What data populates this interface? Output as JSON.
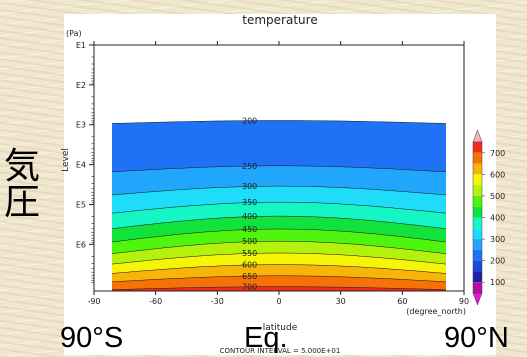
{
  "chart_data": {
    "type": "heatmap",
    "title": "temperature",
    "xlabel": "latitude",
    "ylabel": "Level",
    "x_unit": "(degree_north)",
    "y_unit": "(Pa)",
    "x_ticks": [
      -90,
      -60,
      -30,
      0,
      30,
      60,
      90
    ],
    "y_ticks": [
      "E1",
      "E2",
      "E3",
      "E4",
      "E5",
      "E6"
    ],
    "xlim": [
      -90,
      90
    ],
    "ylim": [
      10,
      2000000
    ],
    "y_scale": "log",
    "y_inverted": true,
    "contour_interval_note": "CONTOUR INTERVAL = 5.000E+01",
    "contour_interval": 50,
    "contour_levels": [
      200,
      250,
      300,
      350,
      400,
      450,
      500,
      550,
      600,
      650,
      700
    ],
    "contour_labels": [
      "200",
      "250",
      "300",
      "350",
      "400",
      "450",
      "500",
      "550",
      "600",
      "650",
      "700"
    ],
    "bands": [
      {
        "level": 150,
        "color": "#1a20a8"
      },
      {
        "level": 200,
        "color": "#1e46d8"
      },
      {
        "level": 250,
        "color": "#1f72f6"
      },
      {
        "level": 300,
        "color": "#20a6fb"
      },
      {
        "level": 350,
        "color": "#1fdcfb"
      },
      {
        "level": 400,
        "color": "#14f6c4"
      },
      {
        "level": 450,
        "color": "#12e23c"
      },
      {
        "level": 500,
        "color": "#50f50f"
      },
      {
        "level": 550,
        "color": "#b4f10c"
      },
      {
        "level": 600,
        "color": "#f6f409"
      },
      {
        "level": 650,
        "color": "#f7b409"
      },
      {
        "level": 700,
        "color": "#f67209"
      },
      {
        "level": 750,
        "color": "#f42b19"
      }
    ],
    "colorbar": {
      "labels": [
        "700",
        "600",
        "500",
        "400",
        "300",
        "200",
        "100"
      ],
      "colors": [
        "#f9b0b8",
        "#f42b19",
        "#f67209",
        "#f7b409",
        "#f6f409",
        "#b4f10c",
        "#50f50f",
        "#12e23c",
        "#14f6c4",
        "#1fdcfb",
        "#20a6fb",
        "#1f72f6",
        "#1e46d8",
        "#1a20a8",
        "#b80fa0",
        "#ee0ed6"
      ]
    },
    "grid": false,
    "legend_position": "right"
  },
  "overlay": {
    "vertical_label_chars": [
      "気",
      "圧"
    ],
    "x_left_label": "90°S",
    "x_center_label": "Eq.",
    "x_right_label": "90°N"
  }
}
